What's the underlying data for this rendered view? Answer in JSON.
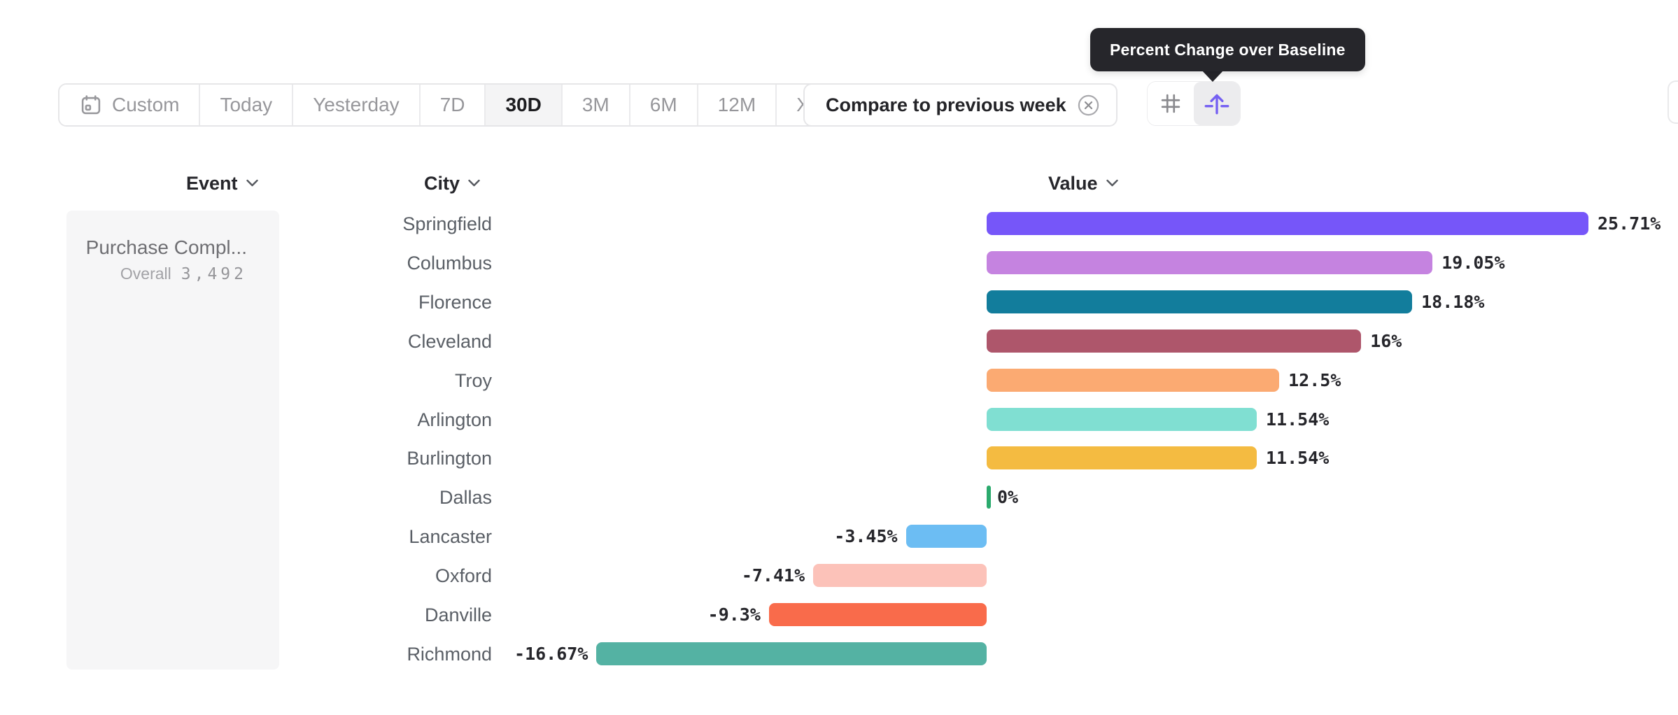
{
  "tooltip": {
    "text": "Percent Change over Baseline"
  },
  "toolbar": {
    "items": [
      {
        "label": "Custom",
        "icon": "calendar-icon",
        "selected": false
      },
      {
        "label": "Today",
        "selected": false
      },
      {
        "label": "Yesterday",
        "selected": false
      },
      {
        "label": "7D",
        "selected": false
      },
      {
        "label": "30D",
        "selected": true
      },
      {
        "label": "3M",
        "selected": false
      },
      {
        "label": "6M",
        "selected": false
      },
      {
        "label": "12M",
        "selected": false
      },
      {
        "label": "XTD",
        "chevron": true,
        "selected": false
      }
    ]
  },
  "compare_chip": {
    "label": "Compare to previous week",
    "close_icon": "close-circle-icon"
  },
  "view_toggle": {
    "buttons": [
      {
        "icon": "hash-grid-icon",
        "active": false
      },
      {
        "icon": "baseline-arrow-icon",
        "active": true,
        "tooltip": "Percent Change over Baseline"
      }
    ]
  },
  "columns": {
    "event": "Event",
    "city": "City",
    "value": "Value",
    "sort_icon": "chevron-down-icon"
  },
  "event_panel": {
    "name": "Purchase Compl...",
    "overall_label": "Overall",
    "overall_value": "3,492"
  },
  "colors": {
    "accent_purple": "#7560f2",
    "tooltip_bg": "#26262b",
    "selected_segment_bg": "#f4f4f5",
    "panel_bg": "#f6f6f7",
    "dallas_green": "#2baa6d"
  },
  "chart_data": {
    "type": "bar",
    "orientation": "horizontal",
    "title": "Percent Change over Baseline",
    "xlabel": "Value",
    "ylabel": "City",
    "categories": [
      "Springfield",
      "Columbus",
      "Florence",
      "Cleveland",
      "Troy",
      "Arlington",
      "Burlington",
      "Dallas",
      "Lancaster",
      "Oxford",
      "Danville",
      "Richmond"
    ],
    "values": [
      25.71,
      19.05,
      18.18,
      16,
      12.5,
      11.54,
      11.54,
      0,
      -3.45,
      -7.41,
      -9.3,
      -16.67
    ],
    "labels": [
      "25.71%",
      "19.05%",
      "18.18%",
      "16%",
      "12.5%",
      "11.54%",
      "11.54%",
      "0%",
      "-3.45%",
      "-7.41%",
      "-9.3%",
      "-16.67%"
    ],
    "colors": [
      "#7656f9",
      "#c583e0",
      "#127d9c",
      "#ae566b",
      "#fbaa72",
      "#80dfd2",
      "#f4bb41",
      "#2baa6d",
      "#6cbdf3",
      "#fcc2b9",
      "#f96b4b",
      "#54b2a3"
    ],
    "baseline": 0,
    "xlim": [
      -16.67,
      25.71
    ],
    "value_suffix": "%",
    "grid": false,
    "legend": false
  }
}
